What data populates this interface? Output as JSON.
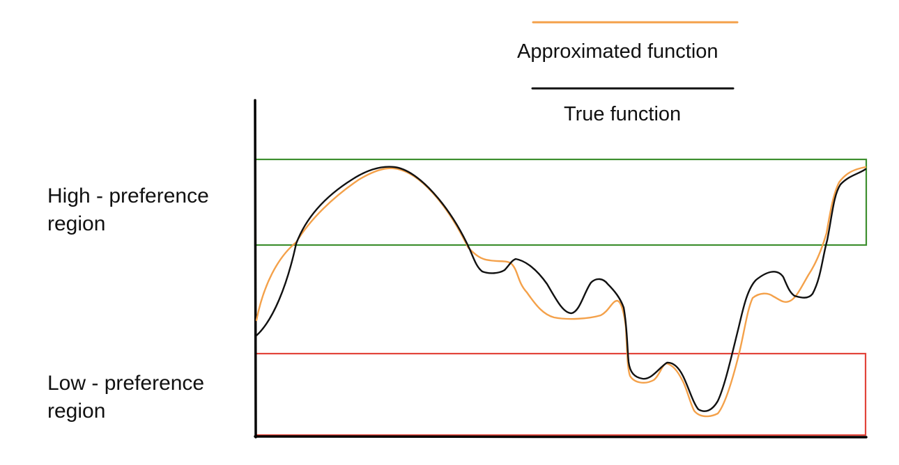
{
  "legend": {
    "approximated": {
      "label": "Approximated function",
      "color": "#f4a14a"
    },
    "true": {
      "label": "True function",
      "color": "#111111"
    }
  },
  "regions": {
    "high": {
      "label": "High - preference region",
      "color": "#3d8f2f"
    },
    "low": {
      "label": "Low - preference region",
      "color": "#e2443a"
    }
  },
  "axes": {
    "color": "#000000"
  }
}
